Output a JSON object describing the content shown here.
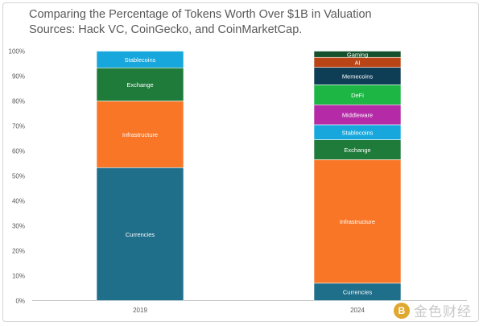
{
  "title": {
    "line1": "Comparing the Percentage of Tokens Worth Over $1B in Valuation",
    "line2": "Sources: Hack VC, CoinGecko, and CoinMarketCap."
  },
  "watermark": {
    "text": "金色财经",
    "logo_glyph": "B"
  },
  "chart_data": {
    "type": "bar",
    "stacked": true,
    "title": "Comparing the Percentage of Tokens Worth Over $1B in Valuation",
    "subtitle": "Sources: Hack VC, CoinGecko, and CoinMarketCap.",
    "categories": [
      "2019",
      "2024"
    ],
    "ylim": [
      0,
      100
    ],
    "yticks": [
      0,
      10,
      20,
      30,
      40,
      50,
      60,
      70,
      80,
      90,
      100
    ],
    "ytick_labels": [
      "0%",
      "10%",
      "20%",
      "30%",
      "40%",
      "50%",
      "60%",
      "70%",
      "80%",
      "90%",
      "100%"
    ],
    "xlabel": "",
    "ylabel": "",
    "grid": false,
    "series": [
      {
        "name": "Currencies",
        "color": "#1f6f8b",
        "values": [
          53.3,
          7.0
        ]
      },
      {
        "name": "Infrastructure",
        "color": "#f97627",
        "values": [
          26.7,
          49.5
        ]
      },
      {
        "name": "Exchange",
        "color": "#1e7b3a",
        "values": [
          13.3,
          8.0
        ]
      },
      {
        "name": "Stablecoins",
        "color": "#17a7dd",
        "values": [
          6.7,
          6.0
        ]
      },
      {
        "name": "Middleware",
        "color": "#b52aa6",
        "values": [
          0,
          8.0
        ]
      },
      {
        "name": "DeFi",
        "color": "#1db544",
        "values": [
          0,
          8.0
        ]
      },
      {
        "name": "Memecoins",
        "color": "#0e3d56",
        "values": [
          0,
          7.0
        ]
      },
      {
        "name": "AI",
        "color": "#b94516",
        "values": [
          0,
          4.0
        ]
      },
      {
        "name": "Gaming",
        "color": "#14502c",
        "values": [
          0,
          2.5
        ]
      }
    ]
  }
}
